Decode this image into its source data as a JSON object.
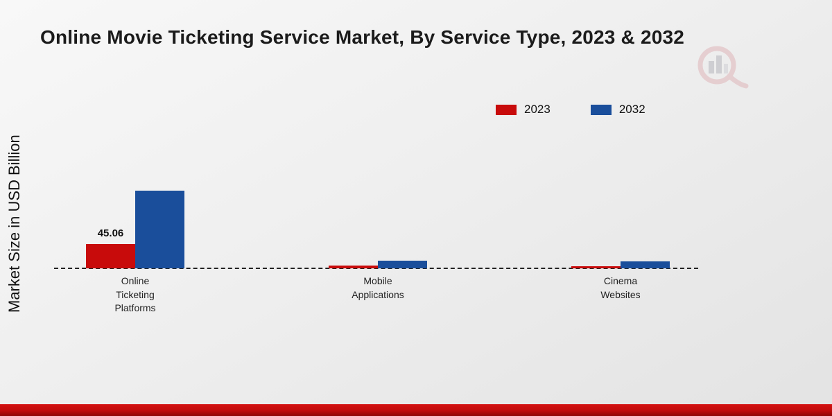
{
  "title": "Online Movie Ticketing Service Market, By Service Type, 2023 & 2032",
  "y_axis_label": "Market Size in USD Billion",
  "legend": [
    {
      "label": "2023",
      "color": "#c80b0b"
    },
    {
      "label": "2032",
      "color": "#1a4e9b"
    }
  ],
  "chart_data": {
    "type": "bar",
    "title": "Online Movie Ticketing Service Market, By Service Type, 2023 & 2032",
    "categories": [
      "Online Ticketing Platforms",
      "Mobile Applications",
      "Cinema Websites"
    ],
    "series": [
      {
        "name": "2023",
        "color": "#c80b0b",
        "values": [
          45.06,
          5.0,
          4.2
        ],
        "labels": [
          "45.06",
          null,
          null
        ]
      },
      {
        "name": "2032",
        "color": "#1a4e9b",
        "values": [
          144.0,
          14.5,
          13.0
        ],
        "labels": [
          null,
          null,
          null
        ]
      }
    ],
    "xlabel": "",
    "ylabel": "Market Size in USD Billion",
    "ylim": [
      0,
      320
    ],
    "grid": false,
    "legend_position": "top-right",
    "baseline_style": "dashed"
  }
}
